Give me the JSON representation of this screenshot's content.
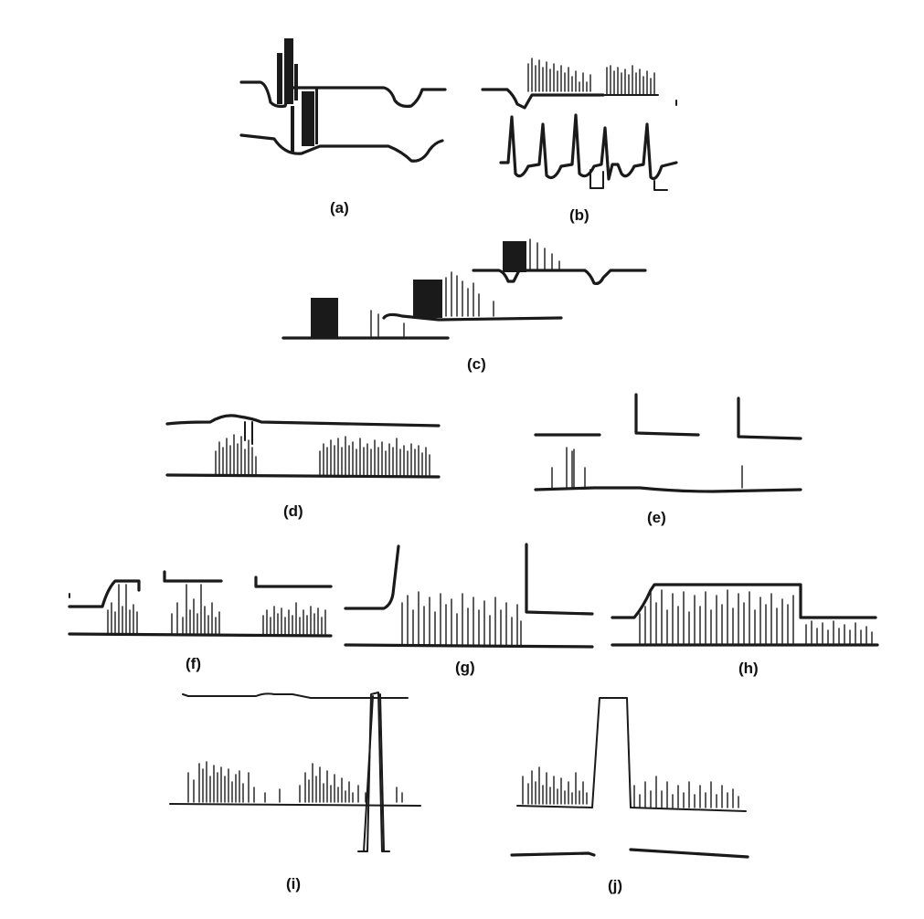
{
  "panels": [
    {
      "label": "(a)"
    },
    {
      "label": "(b)"
    },
    {
      "label": "(c)"
    },
    {
      "label": "(d)"
    },
    {
      "label": "(e)"
    },
    {
      "label": "(f)"
    },
    {
      "label": "(g)"
    },
    {
      "label": "(h)"
    },
    {
      "label": "(i)"
    },
    {
      "label": "(j)"
    }
  ],
  "colors": {
    "ink": "#1a1a1a",
    "background": "#ffffff"
  }
}
